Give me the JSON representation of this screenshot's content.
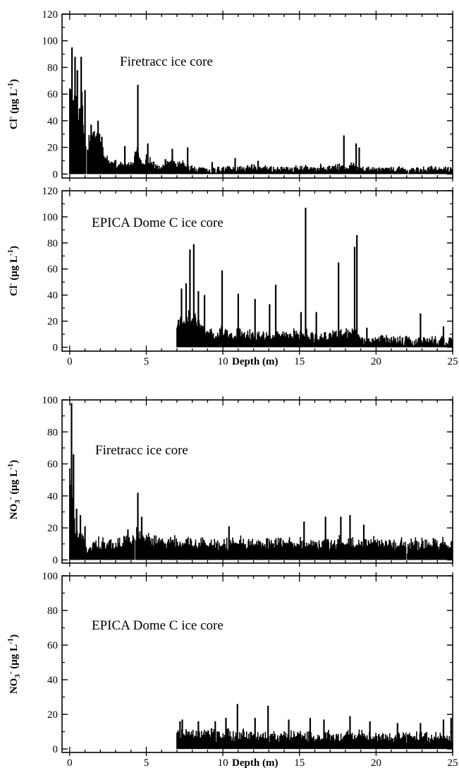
{
  "chart_data": [
    {
      "type": "bar",
      "group": "top",
      "annotation": "Firetracc ice core",
      "ylabel_main": "Cl",
      "ylabel_sup": "-",
      "ylabel_units_open": "(μg L",
      "ylabel_units_sup": "-1",
      "ylabel_units_close": ")",
      "xlabel": "",
      "xlim": [
        -0.5,
        25
      ],
      "ylim": [
        -3,
        120
      ],
      "yticks": [
        "0",
        "20",
        "40",
        "60",
        "80",
        "100",
        "120"
      ],
      "xticks_labeled": false,
      "series": {
        "baseline": [
          [
            0.0,
            75
          ],
          [
            0.2,
            60
          ],
          [
            0.4,
            62
          ],
          [
            0.6,
            58
          ],
          [
            0.8,
            60
          ],
          [
            1.1,
            20
          ],
          [
            1.3,
            34
          ],
          [
            1.6,
            33
          ],
          [
            1.9,
            38
          ],
          [
            2.2,
            18
          ],
          [
            2.5,
            11
          ],
          [
            3.0,
            8
          ],
          [
            3.5,
            7
          ],
          [
            4.0,
            8
          ],
          [
            4.4,
            22
          ],
          [
            4.7,
            8
          ],
          [
            5.0,
            12
          ],
          [
            5.5,
            8
          ],
          [
            6.0,
            6
          ],
          [
            6.5,
            12
          ],
          [
            7.0,
            8
          ],
          [
            7.5,
            7
          ],
          [
            8.0,
            5
          ],
          [
            8.5,
            4
          ],
          [
            9.0,
            1
          ],
          [
            9.5,
            3
          ],
          [
            10.0,
            4
          ],
          [
            11.0,
            4
          ],
          [
            12.0,
            5
          ],
          [
            13.0,
            4
          ],
          [
            14.0,
            4
          ],
          [
            15.0,
            4
          ],
          [
            16.0,
            5
          ],
          [
            17.0,
            5
          ],
          [
            18.0,
            6
          ],
          [
            18.5,
            7
          ],
          [
            19.0,
            5
          ],
          [
            20.0,
            4
          ],
          [
            21.0,
            4
          ],
          [
            22.0,
            3
          ],
          [
            23.0,
            4
          ],
          [
            24.0,
            4
          ],
          [
            25.0,
            4
          ]
        ],
        "noise": 5,
        "spikes": [
          [
            0.15,
            95
          ],
          [
            0.35,
            88
          ],
          [
            0.5,
            78
          ],
          [
            0.75,
            88
          ],
          [
            1.0,
            63
          ],
          [
            1.4,
            37
          ],
          [
            1.85,
            40
          ],
          [
            2.1,
            28
          ],
          [
            3.6,
            21
          ],
          [
            4.45,
            67
          ],
          [
            5.1,
            23
          ],
          [
            6.7,
            19
          ],
          [
            7.7,
            20
          ],
          [
            9.3,
            9
          ],
          [
            10.8,
            12
          ],
          [
            12.3,
            10
          ],
          [
            17.9,
            29
          ],
          [
            18.7,
            23
          ],
          [
            18.9,
            20
          ]
        ],
        "gaps": [
          1.1,
          4.9,
          22.1
        ]
      }
    },
    {
      "type": "bar",
      "group": "top",
      "annotation": "EPICA Dome C ice core",
      "ylabel_main": "Cl",
      "ylabel_sup": "-",
      "ylabel_units_open": "(μg L",
      "ylabel_units_sup": "-1",
      "ylabel_units_close": ")",
      "xlabel": "Depth (m)",
      "xlim": [
        -0.5,
        25
      ],
      "ylim": [
        -3,
        120
      ],
      "yticks": [
        "0",
        "20",
        "40",
        "60",
        "80",
        "100",
        "120"
      ],
      "xticks": [
        "0",
        "5",
        "10",
        "15",
        "20",
        "25"
      ],
      "xticks_labeled": true,
      "series": {
        "start": 7.0,
        "baseline": [
          [
            7.0,
            20
          ],
          [
            7.5,
            22
          ],
          [
            8.0,
            28
          ],
          [
            8.5,
            20
          ],
          [
            9.0,
            12
          ],
          [
            9.5,
            10
          ],
          [
            10.0,
            14
          ],
          [
            10.5,
            10
          ],
          [
            11.0,
            12
          ],
          [
            11.5,
            10
          ],
          [
            12.0,
            10
          ],
          [
            13.0,
            10
          ],
          [
            14.0,
            9
          ],
          [
            15.0,
            12
          ],
          [
            15.5,
            10
          ],
          [
            16.0,
            8
          ],
          [
            17.0,
            10
          ],
          [
            18.0,
            12
          ],
          [
            18.7,
            16
          ],
          [
            19.0,
            6
          ],
          [
            20.0,
            6
          ],
          [
            21.0,
            6
          ],
          [
            22.0,
            5
          ],
          [
            23.0,
            5
          ],
          [
            24.0,
            5
          ],
          [
            25.0,
            5
          ]
        ],
        "noise": 7,
        "spikes": [
          [
            7.1,
            21
          ],
          [
            7.3,
            45
          ],
          [
            7.6,
            49
          ],
          [
            7.85,
            75
          ],
          [
            8.1,
            79
          ],
          [
            8.4,
            43
          ],
          [
            8.8,
            40
          ],
          [
            9.95,
            59
          ],
          [
            11.0,
            41
          ],
          [
            12.1,
            37
          ],
          [
            13.05,
            33
          ],
          [
            13.45,
            48
          ],
          [
            15.1,
            27
          ],
          [
            15.4,
            107
          ],
          [
            16.1,
            27
          ],
          [
            17.55,
            65
          ],
          [
            18.6,
            77
          ],
          [
            18.75,
            86
          ],
          [
            19.4,
            15
          ],
          [
            22.9,
            26
          ],
          [
            24.4,
            16
          ]
        ]
      }
    },
    {
      "type": "bar",
      "group": "bottom",
      "annotation": "Firetracc ice core",
      "ylabel_main": "NO",
      "ylabel_sub": "3",
      "ylabel_sup": "-",
      "ylabel_units_open": "(μg L",
      "ylabel_units_sup": "-1",
      "ylabel_units_close": ")",
      "xlabel": "",
      "xlim": [
        -0.5,
        25
      ],
      "ylim": [
        -2,
        100
      ],
      "yticks": [
        "0",
        "20",
        "40",
        "60",
        "80",
        "100"
      ],
      "xticks_labeled": false,
      "series": {
        "baseline": [
          [
            0.0,
            60
          ],
          [
            0.2,
            40
          ],
          [
            0.35,
            20
          ],
          [
            0.6,
            14
          ],
          [
            0.9,
            12
          ],
          [
            1.2,
            10
          ],
          [
            2.0,
            11
          ],
          [
            3.0,
            11
          ],
          [
            4.0,
            14
          ],
          [
            4.5,
            20
          ],
          [
            5.0,
            15
          ],
          [
            6.0,
            12
          ],
          [
            7.0,
            12
          ],
          [
            8.0,
            11
          ],
          [
            9.0,
            11
          ],
          [
            10.0,
            11
          ],
          [
            11.0,
            12
          ],
          [
            12.0,
            11
          ],
          [
            13.0,
            11
          ],
          [
            14.0,
            11
          ],
          [
            15.0,
            11
          ],
          [
            16.0,
            11
          ],
          [
            17.0,
            11
          ],
          [
            18.0,
            12
          ],
          [
            19.0,
            11
          ],
          [
            20.0,
            11
          ],
          [
            21.0,
            11
          ],
          [
            22.0,
            11
          ],
          [
            23.0,
            11
          ],
          [
            24.0,
            11
          ],
          [
            25.0,
            11
          ]
        ],
        "noise": 7,
        "spikes": [
          [
            0.12,
            98
          ],
          [
            0.25,
            66
          ],
          [
            0.45,
            32
          ],
          [
            0.7,
            28
          ],
          [
            1.0,
            21
          ],
          [
            3.8,
            19
          ],
          [
            4.45,
            42
          ],
          [
            4.7,
            27
          ],
          [
            10.4,
            21
          ],
          [
            15.3,
            24
          ],
          [
            16.7,
            27
          ],
          [
            17.7,
            27
          ],
          [
            18.3,
            28
          ],
          [
            19.2,
            22
          ]
        ],
        "gaps": [
          1.15,
          3.3,
          4.25,
          5.6,
          8.75,
          16.25,
          22.0
        ]
      }
    },
    {
      "type": "bar",
      "group": "bottom",
      "annotation": "EPICA Dome C ice core",
      "ylabel_main": "NO",
      "ylabel_sub": "3",
      "ylabel_sup": "-",
      "ylabel_units_open": "(μg L",
      "ylabel_units_sup": "-1",
      "ylabel_units_close": ")",
      "xlabel": "Depth (m)",
      "xlim": [
        -0.5,
        25
      ],
      "ylim": [
        -2,
        100
      ],
      "yticks": [
        "0",
        "20",
        "40",
        "60",
        "80",
        "100"
      ],
      "xticks": [
        "0",
        "5",
        "10",
        "15",
        "20",
        "25"
      ],
      "xticks_labeled": true,
      "series": {
        "start": 7.0,
        "baseline": [
          [
            7.0,
            9
          ],
          [
            8.0,
            9
          ],
          [
            9.0,
            9
          ],
          [
            10.0,
            9
          ],
          [
            11.0,
            9
          ],
          [
            12.0,
            8
          ],
          [
            13.0,
            8
          ],
          [
            14.0,
            8
          ],
          [
            15.0,
            8
          ],
          [
            16.0,
            8
          ],
          [
            17.0,
            8
          ],
          [
            18.0,
            8
          ],
          [
            19.0,
            8
          ],
          [
            20.0,
            7
          ],
          [
            21.0,
            7
          ],
          [
            22.0,
            7
          ],
          [
            23.0,
            7
          ],
          [
            24.0,
            7
          ],
          [
            25.0,
            7
          ]
        ],
        "noise": 6,
        "spikes": [
          [
            7.2,
            16
          ],
          [
            7.35,
            17
          ],
          [
            8.4,
            16
          ],
          [
            9.5,
            16
          ],
          [
            10.2,
            18
          ],
          [
            10.95,
            26
          ],
          [
            12.1,
            18
          ],
          [
            12.95,
            25
          ],
          [
            14.3,
            17
          ],
          [
            15.7,
            18
          ],
          [
            16.6,
            17
          ],
          [
            18.3,
            19
          ],
          [
            19.6,
            16
          ],
          [
            21.4,
            15
          ],
          [
            22.9,
            15
          ],
          [
            24.4,
            17
          ],
          [
            24.9,
            18
          ]
        ]
      }
    }
  ]
}
